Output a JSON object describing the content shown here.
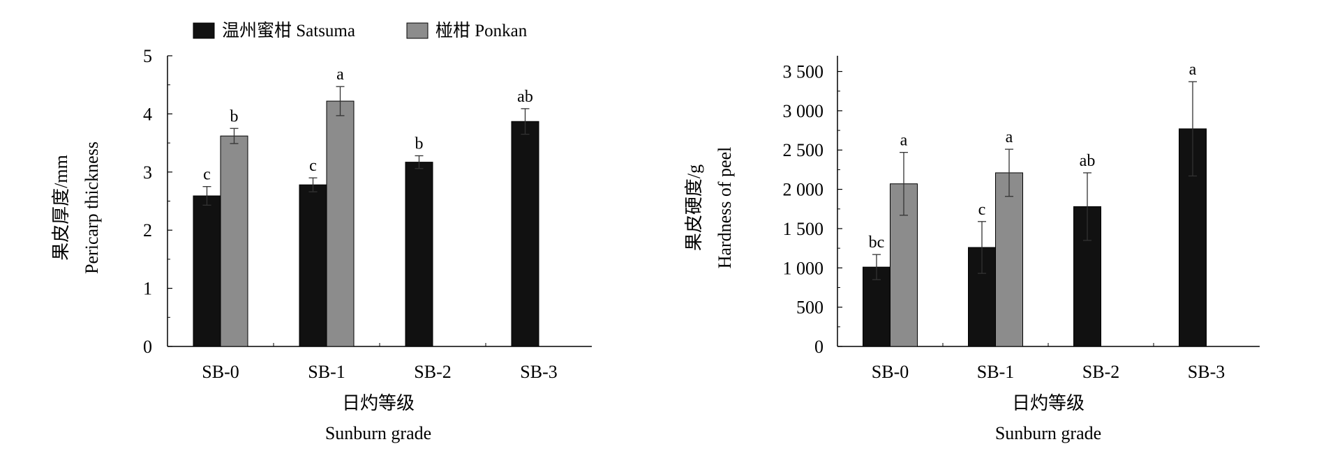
{
  "legend": {
    "series_a": "温州蜜柑 Satsuma",
    "series_b": "椪柑 Ponkan"
  },
  "colors": {
    "satsuma": "#111111",
    "ponkan": "#8c8c8c",
    "axis": "#000000",
    "error_bar": "#333333"
  },
  "chart_data": [
    {
      "type": "bar",
      "categories": [
        "SB-0",
        "SB-1",
        "SB-2",
        "SB-3"
      ],
      "ylabel_cn": "果皮厚度/mm",
      "ylabel_en": "Pericarp thickness",
      "xlabel_cn": "日灼等级",
      "xlabel_en": "Sunburn grade",
      "ylim": [
        0,
        5
      ],
      "yticks": [
        "0",
        "1",
        "2",
        "3",
        "4",
        "5"
      ],
      "ytick_values": [
        0,
        1,
        2,
        3,
        4,
        5
      ],
      "series": [
        {
          "name": "温州蜜柑 Satsuma",
          "values": [
            2.59,
            2.78,
            3.17,
            3.87
          ],
          "errors": [
            0.16,
            0.12,
            0.11,
            0.22
          ],
          "labels": [
            "c",
            "c",
            "b",
            "ab"
          ]
        },
        {
          "name": "椪柑 Ponkan",
          "values": [
            3.62,
            4.22,
            null,
            null
          ],
          "errors": [
            0.13,
            0.25,
            null,
            null
          ],
          "labels": [
            "b",
            "a",
            null,
            null
          ]
        }
      ]
    },
    {
      "type": "bar",
      "categories": [
        "SB-0",
        "SB-1",
        "SB-2",
        "SB-3"
      ],
      "ylabel_cn": "果皮硬度/g",
      "ylabel_en": "Hardness of peel",
      "xlabel_cn": "日灼等级",
      "xlabel_en": "Sunburn grade",
      "ylim": [
        0,
        3700
      ],
      "yticks": [
        "0",
        "500",
        "1 000",
        "1 500",
        "2 000",
        "2 500",
        "3 000",
        "3 500"
      ],
      "ytick_values": [
        0,
        500,
        1000,
        1500,
        2000,
        2500,
        3000,
        3500
      ],
      "series": [
        {
          "name": "温州蜜柑 Satsuma",
          "values": [
            1010,
            1260,
            1780,
            2770
          ],
          "errors": [
            160,
            330,
            430,
            600
          ],
          "labels": [
            "bc",
            "c",
            "ab",
            "a"
          ]
        },
        {
          "name": "椪柑 Ponkan",
          "values": [
            2070,
            2210,
            null,
            null
          ],
          "errors": [
            400,
            300,
            null,
            null
          ],
          "labels": [
            "a",
            "a",
            null,
            null
          ]
        }
      ]
    }
  ]
}
